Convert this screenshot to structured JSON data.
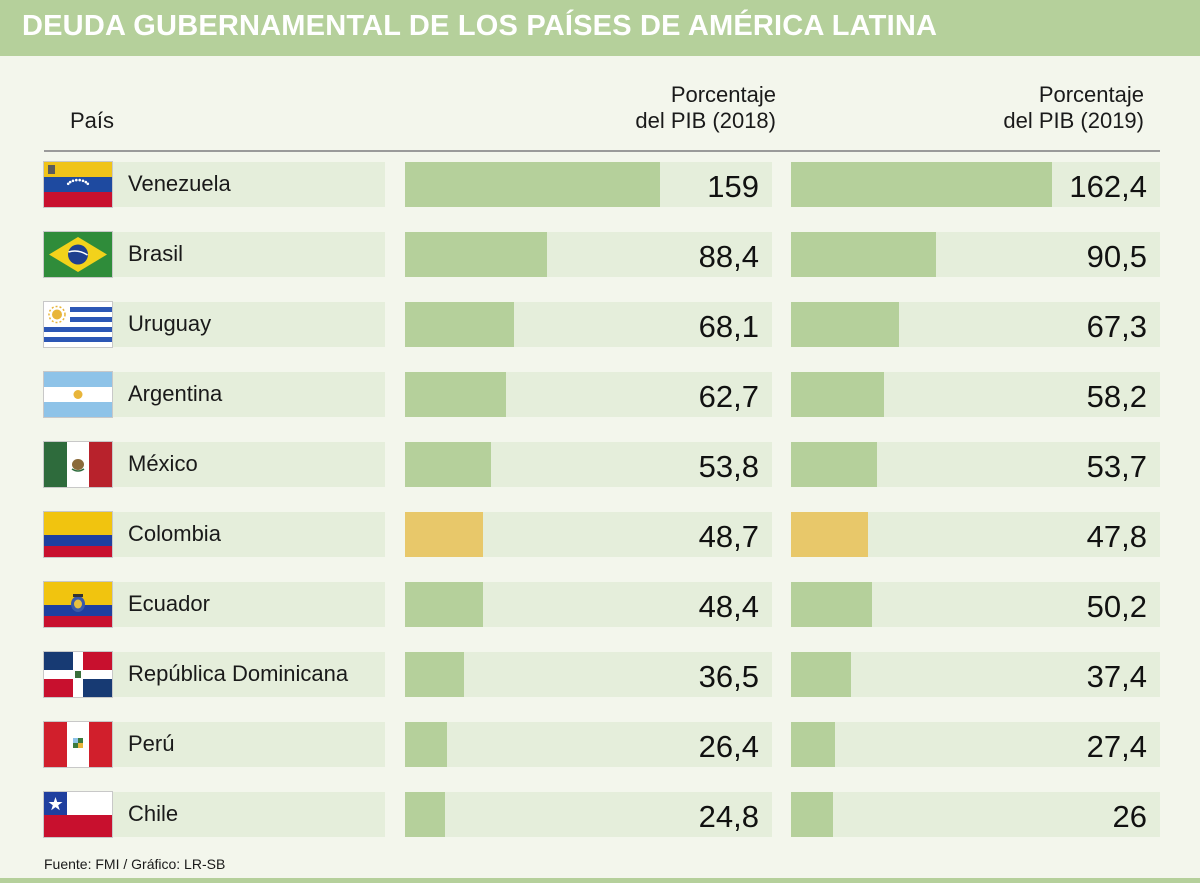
{
  "title": "DEUDA GUBERNAMENTAL DE LOS PAÍSES DE AMÉRICA LATINA",
  "headers": {
    "country": "País",
    "col2018": [
      "Porcentaje",
      "del PIB (2018)"
    ],
    "col2019": [
      "Porcentaje",
      "del PIB (2019)"
    ]
  },
  "source": "Fuente: FMI / Gráfico: LR-SB",
  "colors": {
    "bar": "#b5d09b",
    "highlight": "#e8c86a",
    "cell": "#e5eedb",
    "title_bg": "#b5d09b"
  },
  "chart_data": {
    "type": "bar",
    "orientation": "horizontal",
    "title": "DEUDA GUBERNAMENTAL DE LOS PAÍSES DE AMÉRICA LATINA",
    "categories": [
      "Venezuela",
      "Brasil",
      "Uruguay",
      "Argentina",
      "México",
      "Colombia",
      "Ecuador",
      "República Dominicana",
      "Perú",
      "Chile"
    ],
    "series": [
      {
        "name": "Porcentaje del PIB (2018)",
        "values": [
          159,
          88.4,
          68.1,
          62.7,
          53.8,
          48.7,
          48.4,
          36.5,
          26.4,
          24.8
        ],
        "labels": [
          "159",
          "88,4",
          "68,1",
          "62,7",
          "53,8",
          "48,7",
          "48,4",
          "36,5",
          "26,4",
          "24,8"
        ]
      },
      {
        "name": "Porcentaje del PIB (2019)",
        "values": [
          162.4,
          90.5,
          67.3,
          58.2,
          53.7,
          47.8,
          50.2,
          37.4,
          27.4,
          26
        ],
        "labels": [
          "162,4",
          "90,5",
          "67,3",
          "58,2",
          "53,7",
          "47,8",
          "50,2",
          "37,4",
          "27,4",
          "26"
        ]
      }
    ],
    "highlight": "Colombia",
    "flags": [
      "venezuela-flag-icon",
      "brazil-flag-icon",
      "uruguay-flag-icon",
      "argentina-flag-icon",
      "mexico-flag-icon",
      "colombia-flag-icon",
      "ecuador-flag-icon",
      "dominican-republic-flag-icon",
      "peru-flag-icon",
      "chile-flag-icon"
    ],
    "xlabel": "",
    "ylabel": ""
  }
}
